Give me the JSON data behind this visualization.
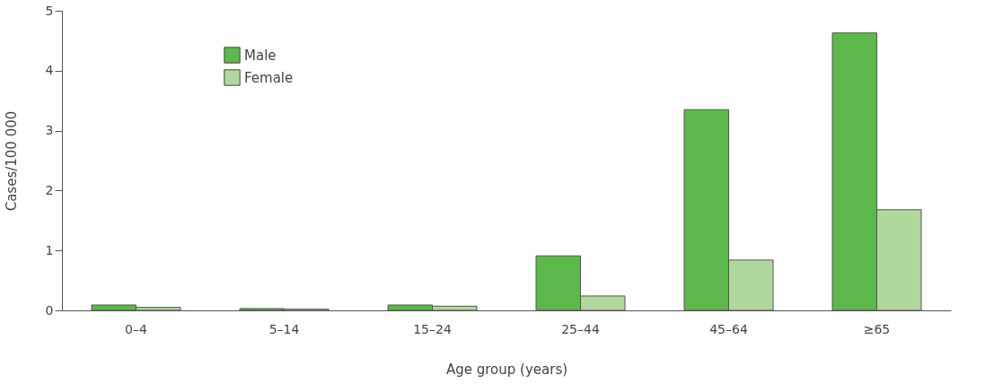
{
  "chart_data": {
    "type": "bar",
    "xlabel": "Age group (years)",
    "ylabel": "Cases/100 000",
    "categories": [
      "0–4",
      "5–14",
      "15–24",
      "25–44",
      "45–64",
      "≥65"
    ],
    "series": [
      {
        "name": "Male",
        "color": "#5cb84a",
        "values": [
          0.09,
          0.03,
          0.09,
          0.91,
          3.35,
          4.63
        ]
      },
      {
        "name": "Female",
        "color": "#b0d89c",
        "values": [
          0.05,
          0.02,
          0.07,
          0.24,
          0.84,
          1.68
        ]
      }
    ],
    "ylim": [
      0,
      5
    ],
    "yticks": [
      0,
      1,
      2,
      3,
      4,
      5
    ],
    "grid": false,
    "legend": "top left"
  }
}
